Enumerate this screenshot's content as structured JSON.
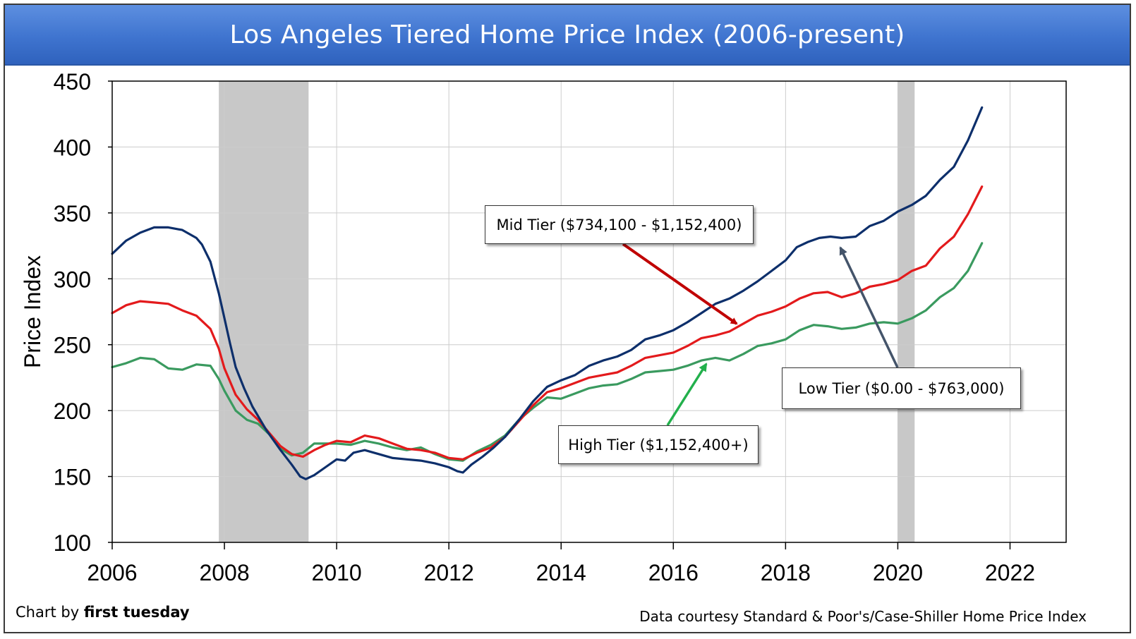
{
  "title": "Los Angeles Tiered Home Price Index (2006-present)",
  "footer": {
    "credit_prefix": "Chart by",
    "credit_brand": "first tuesday",
    "source": "Data courtesy Standard & Poor's/Case-Shiller Home Price Index"
  },
  "annotations": {
    "mid": "Mid Tier ($734,100 - $1,152,400)",
    "low": "Low Tier ($0.00 - $763,000)",
    "high": "High Tier ($1,152,400+)"
  },
  "colors": {
    "low": "#0d2f6b",
    "mid": "#e31a1c",
    "high": "#3a9a5f",
    "recession": "#c8c8c8",
    "grid": "#cccccc",
    "arrow_mid": "#c00000",
    "arrow_low": "#44546a",
    "arrow_high": "#22b04c"
  },
  "chart_data": {
    "type": "line",
    "title": "Los Angeles Tiered Home Price Index (2006-present)",
    "xlabel": "",
    "ylabel": "Price Index",
    "xlim": [
      2006,
      2023
    ],
    "ylim": [
      100,
      450
    ],
    "x_ticks": [
      2006,
      2008,
      2010,
      2012,
      2014,
      2016,
      2018,
      2020,
      2022
    ],
    "y_ticks": [
      100,
      150,
      200,
      250,
      300,
      350,
      400,
      450
    ],
    "grid": true,
    "recession_bands": [
      [
        2007.9,
        2009.5
      ],
      [
        2020.0,
        2020.3
      ]
    ],
    "series": [
      {
        "key": "low",
        "name": "Low Tier ($0.00 - $763,000)",
        "points": [
          [
            2006.0,
            319
          ],
          [
            2006.25,
            329
          ],
          [
            2006.5,
            335
          ],
          [
            2006.75,
            339
          ],
          [
            2007.0,
            339
          ],
          [
            2007.25,
            337
          ],
          [
            2007.5,
            331
          ],
          [
            2007.6,
            326
          ],
          [
            2007.75,
            313
          ],
          [
            2007.9,
            289
          ],
          [
            2008.0,
            270
          ],
          [
            2008.1,
            251
          ],
          [
            2008.2,
            233
          ],
          [
            2008.35,
            217
          ],
          [
            2008.5,
            203
          ],
          [
            2008.75,
            185
          ],
          [
            2009.0,
            170
          ],
          [
            2009.2,
            159
          ],
          [
            2009.35,
            150
          ],
          [
            2009.45,
            148
          ],
          [
            2009.6,
            151
          ],
          [
            2009.8,
            157
          ],
          [
            2010.0,
            163
          ],
          [
            2010.15,
            162
          ],
          [
            2010.3,
            168
          ],
          [
            2010.5,
            170
          ],
          [
            2010.75,
            167
          ],
          [
            2011.0,
            164
          ],
          [
            2011.25,
            163
          ],
          [
            2011.5,
            162
          ],
          [
            2011.75,
            160
          ],
          [
            2012.0,
            157
          ],
          [
            2012.15,
            154
          ],
          [
            2012.25,
            153
          ],
          [
            2012.4,
            159
          ],
          [
            2012.6,
            165
          ],
          [
            2012.8,
            172
          ],
          [
            2013.0,
            180
          ],
          [
            2013.25,
            193
          ],
          [
            2013.5,
            207
          ],
          [
            2013.75,
            218
          ],
          [
            2014.0,
            223
          ],
          [
            2014.25,
            227
          ],
          [
            2014.5,
            234
          ],
          [
            2014.75,
            238
          ],
          [
            2015.0,
            241
          ],
          [
            2015.25,
            246
          ],
          [
            2015.5,
            254
          ],
          [
            2015.75,
            257
          ],
          [
            2016.0,
            261
          ],
          [
            2016.25,
            267
          ],
          [
            2016.5,
            274
          ],
          [
            2016.75,
            281
          ],
          [
            2017.0,
            285
          ],
          [
            2017.25,
            291
          ],
          [
            2017.5,
            298
          ],
          [
            2017.75,
            306
          ],
          [
            2018.0,
            314
          ],
          [
            2018.2,
            324
          ],
          [
            2018.4,
            328
          ],
          [
            2018.6,
            331
          ],
          [
            2018.8,
            332
          ],
          [
            2019.0,
            331
          ],
          [
            2019.25,
            332
          ],
          [
            2019.5,
            340
          ],
          [
            2019.75,
            344
          ],
          [
            2020.0,
            351
          ],
          [
            2020.25,
            356
          ],
          [
            2020.5,
            363
          ],
          [
            2020.75,
            375
          ],
          [
            2021.0,
            385
          ],
          [
            2021.25,
            405
          ],
          [
            2021.5,
            430
          ]
        ]
      },
      {
        "key": "mid",
        "name": "Mid Tier ($734,100 - $1,152,400)",
        "points": [
          [
            2006.0,
            274
          ],
          [
            2006.25,
            280
          ],
          [
            2006.5,
            283
          ],
          [
            2006.75,
            282
          ],
          [
            2007.0,
            281
          ],
          [
            2007.25,
            276
          ],
          [
            2007.5,
            272
          ],
          [
            2007.75,
            262
          ],
          [
            2007.9,
            247
          ],
          [
            2008.0,
            232
          ],
          [
            2008.2,
            212
          ],
          [
            2008.4,
            201
          ],
          [
            2008.6,
            193
          ],
          [
            2008.8,
            183
          ],
          [
            2009.0,
            173
          ],
          [
            2009.2,
            167
          ],
          [
            2009.4,
            165
          ],
          [
            2009.6,
            170
          ],
          [
            2009.8,
            174
          ],
          [
            2010.0,
            177
          ],
          [
            2010.25,
            176
          ],
          [
            2010.5,
            181
          ],
          [
            2010.75,
            179
          ],
          [
            2011.0,
            175
          ],
          [
            2011.25,
            171
          ],
          [
            2011.5,
            170
          ],
          [
            2011.75,
            168
          ],
          [
            2012.0,
            164
          ],
          [
            2012.25,
            163
          ],
          [
            2012.5,
            168
          ],
          [
            2012.75,
            172
          ],
          [
            2013.0,
            180
          ],
          [
            2013.25,
            192
          ],
          [
            2013.5,
            204
          ],
          [
            2013.75,
            214
          ],
          [
            2014.0,
            217
          ],
          [
            2014.25,
            221
          ],
          [
            2014.5,
            225
          ],
          [
            2014.75,
            227
          ],
          [
            2015.0,
            229
          ],
          [
            2015.25,
            234
          ],
          [
            2015.5,
            240
          ],
          [
            2015.75,
            242
          ],
          [
            2016.0,
            244
          ],
          [
            2016.25,
            249
          ],
          [
            2016.5,
            255
          ],
          [
            2016.75,
            257
          ],
          [
            2017.0,
            260
          ],
          [
            2017.25,
            266
          ],
          [
            2017.5,
            272
          ],
          [
            2017.75,
            275
          ],
          [
            2018.0,
            279
          ],
          [
            2018.25,
            285
          ],
          [
            2018.5,
            289
          ],
          [
            2018.75,
            290
          ],
          [
            2019.0,
            286
          ],
          [
            2019.25,
            289
          ],
          [
            2019.5,
            294
          ],
          [
            2019.75,
            296
          ],
          [
            2020.0,
            299
          ],
          [
            2020.25,
            306
          ],
          [
            2020.5,
            310
          ],
          [
            2020.75,
            323
          ],
          [
            2021.0,
            332
          ],
          [
            2021.25,
            349
          ],
          [
            2021.5,
            370
          ]
        ]
      },
      {
        "key": "high",
        "name": "High Tier ($1,152,400+)",
        "points": [
          [
            2006.0,
            233
          ],
          [
            2006.25,
            236
          ],
          [
            2006.5,
            240
          ],
          [
            2006.75,
            239
          ],
          [
            2007.0,
            232
          ],
          [
            2007.25,
            231
          ],
          [
            2007.5,
            235
          ],
          [
            2007.75,
            234
          ],
          [
            2007.9,
            224
          ],
          [
            2008.0,
            215
          ],
          [
            2008.2,
            200
          ],
          [
            2008.4,
            193
          ],
          [
            2008.6,
            190
          ],
          [
            2008.8,
            182
          ],
          [
            2009.0,
            171
          ],
          [
            2009.2,
            166
          ],
          [
            2009.4,
            168
          ],
          [
            2009.6,
            175
          ],
          [
            2009.8,
            175
          ],
          [
            2010.0,
            175
          ],
          [
            2010.25,
            174
          ],
          [
            2010.5,
            177
          ],
          [
            2010.75,
            175
          ],
          [
            2011.0,
            172
          ],
          [
            2011.25,
            170
          ],
          [
            2011.5,
            172
          ],
          [
            2011.75,
            167
          ],
          [
            2012.0,
            163
          ],
          [
            2012.25,
            162
          ],
          [
            2012.5,
            169
          ],
          [
            2012.75,
            174
          ],
          [
            2013.0,
            181
          ],
          [
            2013.25,
            193
          ],
          [
            2013.5,
            202
          ],
          [
            2013.75,
            210
          ],
          [
            2014.0,
            209
          ],
          [
            2014.25,
            213
          ],
          [
            2014.5,
            217
          ],
          [
            2014.75,
            219
          ],
          [
            2015.0,
            220
          ],
          [
            2015.25,
            224
          ],
          [
            2015.5,
            229
          ],
          [
            2015.75,
            230
          ],
          [
            2016.0,
            231
          ],
          [
            2016.25,
            234
          ],
          [
            2016.5,
            238
          ],
          [
            2016.75,
            240
          ],
          [
            2017.0,
            238
          ],
          [
            2017.25,
            243
          ],
          [
            2017.5,
            249
          ],
          [
            2017.75,
            251
          ],
          [
            2018.0,
            254
          ],
          [
            2018.25,
            261
          ],
          [
            2018.5,
            265
          ],
          [
            2018.75,
            264
          ],
          [
            2019.0,
            262
          ],
          [
            2019.25,
            263
          ],
          [
            2019.5,
            266
          ],
          [
            2019.75,
            267
          ],
          [
            2020.0,
            266
          ],
          [
            2020.25,
            270
          ],
          [
            2020.5,
            276
          ],
          [
            2020.75,
            286
          ],
          [
            2021.0,
            293
          ],
          [
            2021.25,
            306
          ],
          [
            2021.5,
            327
          ]
        ]
      }
    ]
  }
}
